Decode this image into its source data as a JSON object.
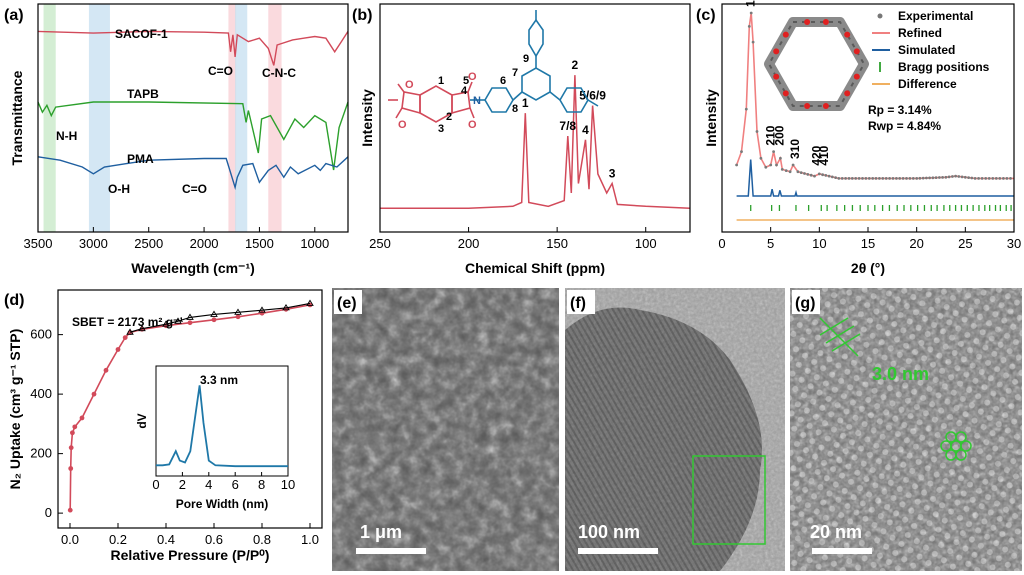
{
  "panels": {
    "a": "(a)",
    "b": "(b)",
    "c": "(c)",
    "d": "(d)",
    "e": "(e)",
    "f": "(f)",
    "g": "(g)"
  },
  "chart_data": [
    {
      "panel": "a",
      "type": "line",
      "xlabel": "Wavelength (cm⁻¹)",
      "ylabel": "Transmittance",
      "xlim": [
        3500,
        700
      ],
      "x_reversed": true,
      "xticks": [
        3500,
        3000,
        2500,
        2000,
        1500,
        1000
      ],
      "series": [
        {
          "name": "SACOF-1",
          "color": "#d24a5a",
          "offset": 0.88,
          "points": [
            [
              3500,
              0
            ],
            [
              3000,
              -0.01
            ],
            [
              2500,
              0
            ],
            [
              2000,
              -0.005
            ],
            [
              1780,
              -0.01
            ],
            [
              1760,
              -0.12
            ],
            [
              1740,
              -0.02
            ],
            [
              1720,
              -0.15
            ],
            [
              1700,
              -0.02
            ],
            [
              1600,
              -0.06
            ],
            [
              1500,
              -0.04
            ],
            [
              1420,
              -0.1
            ],
            [
              1370,
              -0.2
            ],
            [
              1340,
              -0.08
            ],
            [
              1200,
              -0.05
            ],
            [
              1100,
              -0.04
            ],
            [
              1000,
              -0.03
            ],
            [
              900,
              -0.04
            ],
            [
              820,
              -0.12
            ],
            [
              760,
              -0.06
            ],
            [
              700,
              0
            ]
          ]
        },
        {
          "name": "TAPB",
          "color": "#2ca02c",
          "offset": 0.57,
          "points": [
            [
              3500,
              0
            ],
            [
              3460,
              -0.06
            ],
            [
              3420,
              -0.02
            ],
            [
              3380,
              -0.08
            ],
            [
              3340,
              -0.03
            ],
            [
              3000,
              0
            ],
            [
              2500,
              0
            ],
            [
              1650,
              -0.01
            ],
            [
              1620,
              -0.12
            ],
            [
              1600,
              -0.05
            ],
            [
              1510,
              -0.3
            ],
            [
              1480,
              -0.1
            ],
            [
              1400,
              -0.08
            ],
            [
              1280,
              -0.22
            ],
            [
              1180,
              -0.1
            ],
            [
              1100,
              -0.15
            ],
            [
              1000,
              -0.08
            ],
            [
              900,
              -0.12
            ],
            [
              830,
              -0.4
            ],
            [
              780,
              -0.15
            ],
            [
              700,
              0
            ]
          ]
        },
        {
          "name": "PMA",
          "color": "#1f5fa0",
          "offset": 0.33,
          "points": [
            [
              3500,
              0
            ],
            [
              3300,
              -0.02
            ],
            [
              3100,
              -0.06
            ],
            [
              3000,
              -0.1
            ],
            [
              2900,
              -0.06
            ],
            [
              2700,
              -0.04
            ],
            [
              2500,
              -0.02
            ],
            [
              2000,
              -0.01
            ],
            [
              1800,
              -0.01
            ],
            [
              1720,
              -0.18
            ],
            [
              1700,
              -0.12
            ],
            [
              1650,
              -0.05
            ],
            [
              1560,
              -0.04
            ],
            [
              1500,
              -0.15
            ],
            [
              1420,
              -0.08
            ],
            [
              1350,
              -0.05
            ],
            [
              1280,
              -0.12
            ],
            [
              1220,
              -0.06
            ],
            [
              1150,
              -0.1
            ],
            [
              1000,
              -0.05
            ],
            [
              950,
              -0.08
            ],
            [
              900,
              -0.04
            ],
            [
              800,
              -0.06
            ],
            [
              700,
              0
            ]
          ]
        }
      ],
      "bands": [
        {
          "from": 3450,
          "to": 3340,
          "color": "#c6e8c6"
        },
        {
          "from": 3040,
          "to": 2850,
          "color": "#c5dff0"
        },
        {
          "from": 1780,
          "to": 1710,
          "color": "#f8cdd3"
        },
        {
          "from": 1720,
          "to": 1610,
          "color": "#c5dff0"
        },
        {
          "from": 1420,
          "to": 1300,
          "color": "#f8cdd3"
        }
      ],
      "annotations": [
        "SACOF-1",
        "TAPB",
        "PMA",
        "C=O",
        "C-N-C",
        "N-H",
        "O-H",
        "C=O"
      ]
    },
    {
      "panel": "b",
      "type": "line",
      "xlabel": "Chemical Shift (ppm)",
      "ylabel": "Intensity",
      "xlim": [
        250,
        75
      ],
      "x_reversed": true,
      "xticks": [
        250,
        200,
        150,
        100
      ],
      "series": [
        {
          "name": "",
          "color": "#d24a5a",
          "points": [
            [
              250,
              0.02
            ],
            [
              200,
              0.02
            ],
            [
              175,
              0.03
            ],
            [
              170,
              0.05
            ],
            [
              168,
              0.52
            ],
            [
              166,
              0.05
            ],
            [
              155,
              0.03
            ],
            [
              146,
              0.06
            ],
            [
              144,
              0.4
            ],
            [
              142,
              0.1
            ],
            [
              140,
              0.72
            ],
            [
              138,
              0.15
            ],
            [
              134,
              0.38
            ],
            [
              132,
              0.12
            ],
            [
              130,
              0.56
            ],
            [
              127,
              0.2
            ],
            [
              122,
              0.1
            ],
            [
              119,
              0.15
            ],
            [
              116,
              0.04
            ],
            [
              100,
              0.03
            ],
            [
              75,
              0.02
            ]
          ]
        }
      ],
      "peak_labels": [
        {
          "label": "1",
          "x": 168,
          "y": 0.52
        },
        {
          "label": "7/8",
          "x": 144,
          "y": 0.4
        },
        {
          "label": "2",
          "x": 140,
          "y": 0.72
        },
        {
          "label": "4",
          "x": 134,
          "y": 0.38
        },
        {
          "label": "5/6/9",
          "x": 130,
          "y": 0.56
        },
        {
          "label": "3",
          "x": 119,
          "y": 0.15
        }
      ],
      "structure_labels": [
        "1",
        "2",
        "3",
        "4",
        "5",
        "6",
        "7",
        "8",
        "9",
        "N"
      ]
    },
    {
      "panel": "c",
      "type": "line",
      "xlabel": "2θ (°)",
      "ylabel": "Intensity",
      "xlim": [
        0,
        30
      ],
      "xticks": [
        0,
        5,
        10,
        15,
        20,
        25,
        30
      ],
      "series": [
        {
          "name": "Experimental",
          "color": "#777777"
        },
        {
          "name": "Refined",
          "color": "#f08080"
        },
        {
          "name": "Simulated",
          "color": "#1f5fa0"
        },
        {
          "name": "Bragg positions",
          "color": "#2ca02c"
        },
        {
          "name": "Difference",
          "color": "#f0b060"
        }
      ],
      "pattern": {
        "points": [
          [
            1.5,
            0.3
          ],
          [
            2.0,
            0.36
          ],
          [
            2.5,
            0.55
          ],
          [
            2.8,
            0.92
          ],
          [
            3.0,
            0.98
          ],
          [
            3.2,
            0.85
          ],
          [
            3.6,
            0.45
          ],
          [
            4.0,
            0.33
          ],
          [
            4.5,
            0.29
          ],
          [
            5.0,
            0.3
          ],
          [
            5.3,
            0.36
          ],
          [
            5.6,
            0.3
          ],
          [
            6.0,
            0.33
          ],
          [
            6.2,
            0.28
          ],
          [
            7.0,
            0.27
          ],
          [
            7.3,
            0.3
          ],
          [
            7.8,
            0.27
          ],
          [
            9.5,
            0.25
          ],
          [
            10,
            0.26
          ],
          [
            12,
            0.24
          ],
          [
            20,
            0.24
          ],
          [
            23,
            0.245
          ],
          [
            24,
            0.25
          ],
          [
            26,
            0.24
          ],
          [
            30,
            0.24
          ]
        ],
        "peak_labels": [
          {
            "label": "100",
            "x": 2.95
          },
          {
            "label": "210",
            "x": 5.0
          },
          {
            "label": "200",
            "x": 5.9
          },
          {
            "label": "310",
            "x": 7.5
          },
          {
            "label": "420",
            "x": 9.7
          },
          {
            "label": "410",
            "x": 10.5
          }
        ],
        "bragg": [
          2.95,
          5.1,
          5.9,
          7.6,
          8.9,
          10.2,
          10.8,
          11.8,
          12.6,
          13.4,
          14.2,
          15.0,
          15.7,
          16.5,
          17.2,
          18.0,
          18.7,
          19.4,
          20.1,
          20.8,
          21.5,
          22.1,
          22.8,
          23.4,
          24.0,
          24.6,
          25.2,
          25.8,
          26.4,
          27.0,
          27.5,
          28.1,
          28.6,
          29.2,
          29.7
        ]
      },
      "stats": {
        "rp": "Rp = 3.14%",
        "rwp": "Rwp = 4.84%"
      }
    },
    {
      "panel": "d",
      "type": "line",
      "xlabel": "Relative Pressure (P/P⁰)",
      "ylabel": "N₂ Uptake (cm³ g⁻¹ STP)",
      "xlim": [
        -0.05,
        1.05
      ],
      "ylim": [
        -50,
        750
      ],
      "xticks": [
        0.0,
        0.2,
        0.4,
        0.6,
        0.8,
        1.0
      ],
      "yticks": [
        0,
        200,
        400,
        600
      ],
      "sbet": "SBET = 2173 m² g⁻¹",
      "series": [
        {
          "name": "adsorption",
          "color": "#d24a5a",
          "points": [
            [
              0.001,
              10
            ],
            [
              0.003,
              150
            ],
            [
              0.005,
              220
            ],
            [
              0.01,
              270
            ],
            [
              0.02,
              290
            ],
            [
              0.05,
              320
            ],
            [
              0.1,
              400
            ],
            [
              0.15,
              480
            ],
            [
              0.2,
              550
            ],
            [
              0.23,
              590
            ],
            [
              0.25,
              607
            ],
            [
              0.3,
              618
            ],
            [
              0.4,
              630
            ],
            [
              0.5,
              640
            ],
            [
              0.6,
              650
            ],
            [
              0.7,
              660
            ],
            [
              0.8,
              672
            ],
            [
              0.9,
              685
            ],
            [
              1.0,
              700
            ]
          ]
        },
        {
          "name": "desorption",
          "color": "#000000",
          "points": [
            [
              1.0,
              705
            ],
            [
              0.9,
              690
            ],
            [
              0.8,
              682
            ],
            [
              0.7,
              675
            ],
            [
              0.6,
              668
            ],
            [
              0.5,
              658
            ],
            [
              0.45,
              645
            ],
            [
              0.4,
              635
            ],
            [
              0.3,
              620
            ],
            [
              0.25,
              608
            ]
          ]
        }
      ],
      "inset": {
        "xlabel": "Pore Width (nm)",
        "ylabel": "dV",
        "xlim": [
          0,
          10
        ],
        "xticks": [
          0,
          2,
          4,
          6,
          8,
          10
        ],
        "peak_label": "3.3 nm",
        "points": [
          [
            0,
            0.05
          ],
          [
            0.5,
            0.05
          ],
          [
            1.0,
            0.06
          ],
          [
            1.5,
            0.2
          ],
          [
            1.8,
            0.1
          ],
          [
            2.2,
            0.08
          ],
          [
            2.6,
            0.2
          ],
          [
            3.0,
            0.6
          ],
          [
            3.3,
            0.9
          ],
          [
            3.6,
            0.5
          ],
          [
            4.0,
            0.1
          ],
          [
            4.5,
            0.05
          ],
          [
            6,
            0.04
          ],
          [
            10,
            0.04
          ]
        ]
      }
    },
    {
      "panel": "e",
      "type": "table",
      "kind": "micrograph",
      "scale_bar": "1 μm"
    },
    {
      "panel": "f",
      "type": "table",
      "kind": "micrograph",
      "scale_bar": "100 nm"
    },
    {
      "panel": "g",
      "type": "table",
      "kind": "micrograph",
      "scale_bar": "20 nm",
      "lattice_label": "3.0 nm"
    }
  ]
}
